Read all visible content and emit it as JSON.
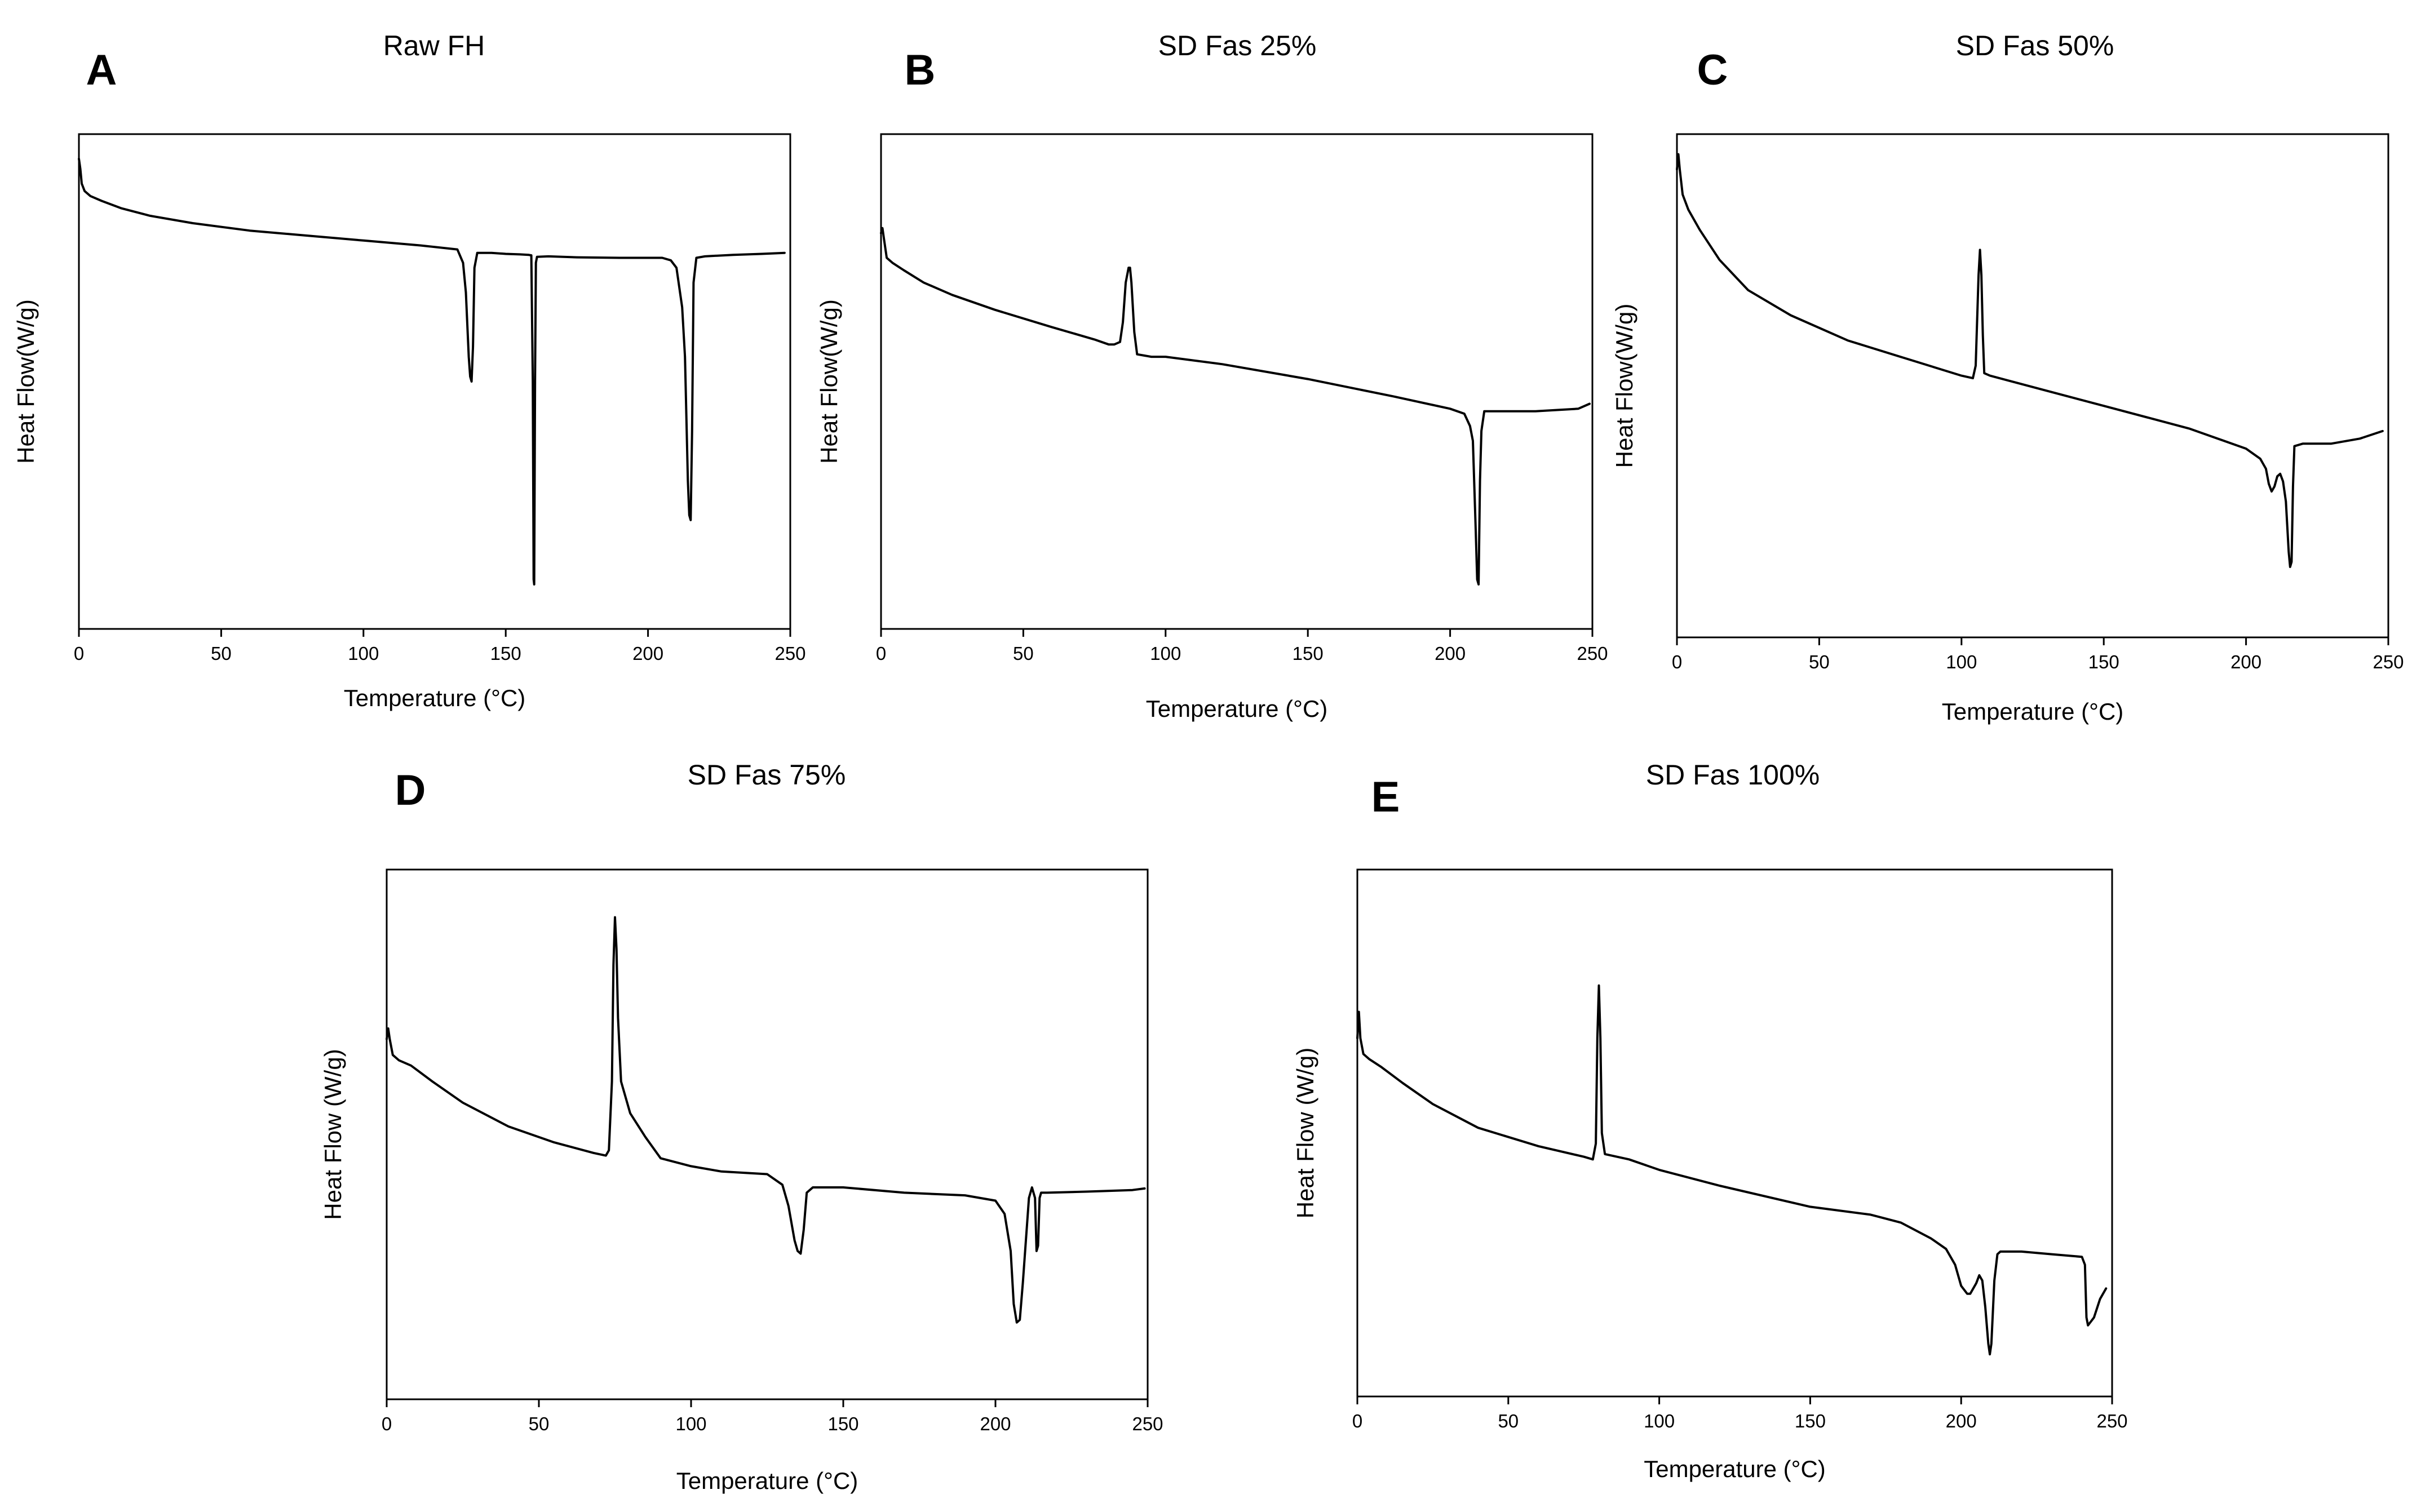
{
  "chart_data": [
    {
      "type": "line",
      "panel": "A",
      "title": "Raw FH",
      "xlabel": "Temperature (°C)",
      "ylabel": "Heat Flow(W/g)",
      "xlim": [
        0,
        250
      ],
      "ylim": [
        0,
        100
      ],
      "xticks": [
        0,
        50,
        100,
        150,
        200,
        250
      ],
      "grid": false,
      "x": [
        0,
        0.5,
        1,
        2,
        4,
        8,
        15,
        25,
        40,
        60,
        80,
        100,
        120,
        133,
        135,
        136,
        137,
        137.5,
        138,
        138.5,
        139,
        140,
        145,
        150,
        155,
        158,
        159,
        159.5,
        159.8,
        160,
        160.3,
        160.6,
        161,
        165,
        175,
        190,
        205,
        208,
        210,
        212,
        213,
        214,
        214.5,
        215,
        215.5,
        216,
        217,
        220,
        230,
        240,
        248
      ],
      "series": [
        {
          "values": [
            95,
            93,
            90,
            88.5,
            87.5,
            86.5,
            85,
            83.5,
            82,
            80.5,
            79.5,
            78.5,
            77.5,
            76.7,
            74,
            68,
            55,
            51,
            50,
            57,
            73,
            76,
            76,
            75.8,
            75.7,
            75.6,
            75.5,
            50,
            10,
            9,
            50,
            74,
            75.2,
            75.3,
            75.1,
            75,
            75,
            74.5,
            73,
            65,
            55,
            30,
            23,
            22,
            40,
            70,
            75,
            75.3,
            75.6,
            75.8,
            76
          ]
        }
      ]
    },
    {
      "type": "line",
      "panel": "B",
      "title": "SD Fas 25%",
      "xlabel": "Temperature (°C)",
      "ylabel": "Heat Flow(W/g)",
      "xlim": [
        0,
        250
      ],
      "ylim": [
        0,
        100
      ],
      "xticks": [
        0,
        50,
        100,
        150,
        200,
        250
      ],
      "grid": false,
      "x": [
        0,
        0.5,
        1,
        2,
        4,
        8,
        15,
        25,
        40,
        60,
        75,
        80,
        82,
        84,
        85,
        86,
        87,
        87.5,
        88,
        89,
        90,
        95,
        100,
        120,
        150,
        180,
        200,
        205,
        207,
        208,
        209,
        209.5,
        210,
        210.5,
        211,
        212,
        215,
        230,
        245,
        249
      ],
      "series": [
        {
          "values": [
            80,
            81,
            79,
            75,
            74,
            72.5,
            70,
            67.5,
            64.5,
            61,
            58.5,
            57.5,
            57.5,
            58,
            62,
            70,
            73,
            73,
            70,
            60,
            55.5,
            55,
            55,
            53.5,
            50.5,
            47,
            44.5,
            43.5,
            41,
            38,
            20,
            10,
            9,
            30,
            40,
            44,
            44,
            44,
            44.5,
            45.5
          ]
        }
      ]
    },
    {
      "type": "line",
      "panel": "C",
      "title": "SD Fas 50%",
      "xlabel": "Temperature (°C)",
      "ylabel": "Heat Flow(W/g)",
      "xlim": [
        0,
        250
      ],
      "ylim": [
        0,
        100
      ],
      "xticks": [
        0,
        50,
        100,
        150,
        200,
        250
      ],
      "grid": false,
      "x": [
        0,
        0.5,
        1,
        2,
        4,
        8,
        15,
        25,
        40,
        60,
        80,
        100,
        104,
        105,
        106,
        106.5,
        107,
        107.5,
        108,
        110,
        130,
        150,
        180,
        200,
        205,
        207,
        208,
        209,
        210,
        211,
        212,
        213,
        214,
        215,
        215.5,
        216,
        216.5,
        217,
        220,
        230,
        240,
        248
      ],
      "series": [
        {
          "values": [
            93,
            96,
            93,
            88,
            85,
            81,
            75,
            69,
            64,
            59,
            55.5,
            52,
            51.5,
            54,
            72,
            77,
            72,
            60,
            52.5,
            52,
            49,
            46,
            41.5,
            37.5,
            35.5,
            33.5,
            30.5,
            29,
            30,
            32,
            32.5,
            31,
            27,
            17,
            14,
            15,
            30,
            38,
            38.5,
            38.5,
            39.5,
            41
          ]
        }
      ]
    },
    {
      "type": "line",
      "panel": "D",
      "title": "SD Fas 75%",
      "xlabel": "Temperature (°C)",
      "ylabel": "Heat Flow (W/g)",
      "xlim": [
        0,
        250
      ],
      "ylim": [
        0,
        100
      ],
      "xticks": [
        0,
        50,
        100,
        150,
        200,
        250
      ],
      "grid": false,
      "x": [
        0,
        0.5,
        1,
        2,
        4,
        8,
        15,
        25,
        40,
        55,
        68,
        72,
        73,
        74,
        74.5,
        75,
        75.5,
        76,
        77,
        80,
        85,
        90,
        100,
        110,
        125,
        130,
        132,
        134,
        135,
        136,
        137,
        138,
        140,
        150,
        170,
        190,
        200,
        203,
        205,
        206,
        207,
        208,
        209,
        210,
        211,
        212,
        213,
        213.5,
        214,
        214.5,
        215,
        217,
        230,
        245,
        249
      ],
      "series": [
        {
          "values": [
            68,
            70,
            68,
            65,
            64,
            63,
            60,
            56,
            51.5,
            48.5,
            46.5,
            46,
            47,
            60,
            82,
            91,
            85,
            72,
            60,
            54,
            49.5,
            45.5,
            44,
            43,
            42.5,
            40.5,
            36.5,
            30,
            28,
            27.5,
            32,
            39,
            40,
            40,
            39,
            38.5,
            37.5,
            35,
            28,
            18,
            14.5,
            15,
            22,
            30,
            38,
            40,
            38,
            28,
            29,
            38,
            39,
            39,
            39.2,
            39.5,
            39.8
          ]
        }
      ]
    },
    {
      "type": "line",
      "panel": "E",
      "title": "SD Fas 100%",
      "xlabel": "Temperature (°C)",
      "ylabel": "Heat Flow (W/g)",
      "xlim": [
        0,
        250
      ],
      "ylim": [
        0,
        100
      ],
      "xticks": [
        0,
        50,
        100,
        150,
        200,
        250
      ],
      "grid": false,
      "x": [
        0,
        0.5,
        1,
        2,
        4,
        8,
        15,
        25,
        40,
        60,
        75,
        78,
        79,
        79.5,
        80,
        80.5,
        81,
        82,
        90,
        100,
        120,
        150,
        170,
        180,
        190,
        195,
        198,
        200,
        202,
        203,
        205,
        206,
        207,
        208,
        209,
        209.5,
        210,
        211,
        212,
        213,
        220,
        230,
        240,
        241,
        241.5,
        242,
        244,
        246,
        248
      ],
      "series": [
        {
          "values": [
            68,
            73,
            68,
            65,
            64,
            62.5,
            59.5,
            55.5,
            51,
            47.5,
            45.5,
            45,
            48,
            68,
            78,
            68,
            50,
            46,
            45,
            43,
            40,
            36,
            34.5,
            33,
            30,
            28,
            25,
            21,
            19.5,
            19.5,
            21.5,
            23,
            22,
            17,
            10,
            8,
            10,
            22,
            27,
            27.5,
            27.5,
            27,
            26.5,
            25,
            15,
            13.5,
            15,
            18.5,
            20.5
          ]
        }
      ]
    }
  ]
}
